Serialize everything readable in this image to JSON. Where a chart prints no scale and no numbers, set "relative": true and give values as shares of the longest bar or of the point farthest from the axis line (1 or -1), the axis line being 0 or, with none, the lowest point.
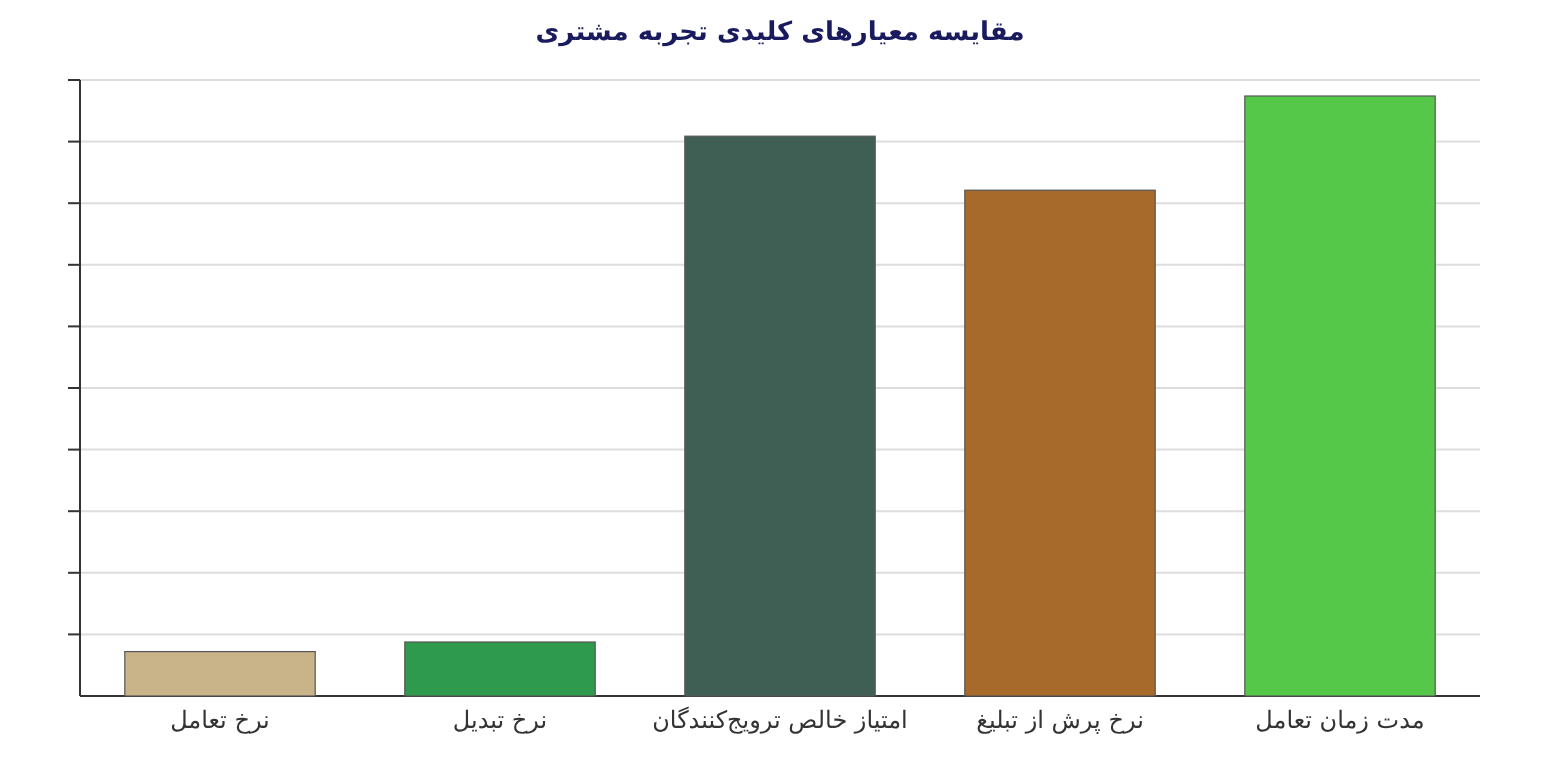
{
  "chart_data": {
    "type": "bar",
    "title": "مقایسه معیارهای کلیدی تجربه مشتری",
    "categories": [
      "نرخ تعامل",
      "نرخ تبدیل",
      "امتیاز خالص ترویج‌کنندگان",
      "نرخ پرش از تبلیغ",
      "مدت زمان تعامل"
    ],
    "values": [
      0.074,
      0.09,
      0.933,
      0.843,
      1
    ],
    "colors": [
      "#c9b48a",
      "#2e9a4e",
      "#3f5f55",
      "#a86a2a",
      "#55c84a"
    ],
    "relative": true,
    "grid": true
  }
}
